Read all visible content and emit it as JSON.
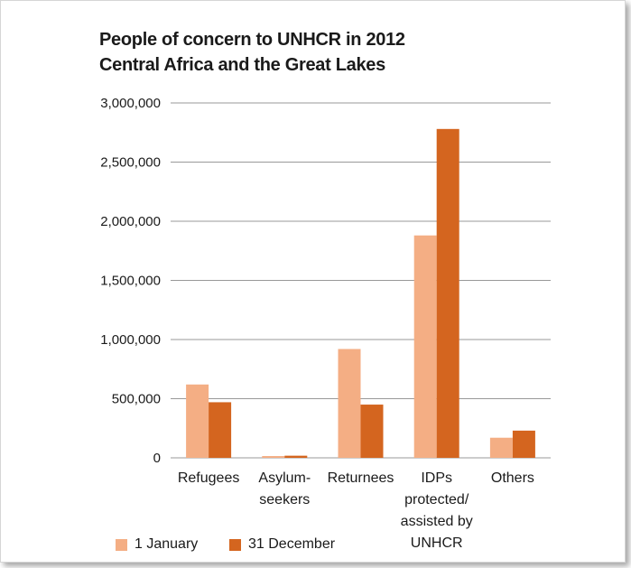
{
  "title_lines": [
    "People of concern to UNHCR in 2012",
    "Central Africa and the Great Lakes"
  ],
  "colors": {
    "jan": "#f4ae84",
    "dec": "#d4651f",
    "grid": "#999999",
    "text": "#1a1a1a"
  },
  "legend": [
    {
      "label": "1 January",
      "color": "#f4ae84"
    },
    {
      "label": "31 December",
      "color": "#d4651f"
    }
  ],
  "chart_data": {
    "type": "bar",
    "title": "People of concern to UNHCR in 2012 Central Africa and the Great Lakes",
    "categories": [
      [
        "Refugees"
      ],
      [
        "Asylum-",
        "seekers"
      ],
      [
        "Returnees"
      ],
      [
        "IDPs",
        "protected/",
        "assisted by",
        "UNHCR"
      ],
      [
        "Others"
      ]
    ],
    "series": [
      {
        "name": "1 January",
        "values": [
          620000,
          15000,
          920000,
          1880000,
          170000
        ]
      },
      {
        "name": "31 December",
        "values": [
          470000,
          18000,
          450000,
          2780000,
          230000
        ]
      }
    ],
    "ylim": [
      0,
      3000000
    ],
    "yticks": [
      "0",
      "500,000",
      "1,000,000",
      "1,500,000",
      "2,000,000",
      "2,500,000",
      "3,000,000"
    ],
    "grid": true,
    "legend_position": "bottom-left"
  }
}
